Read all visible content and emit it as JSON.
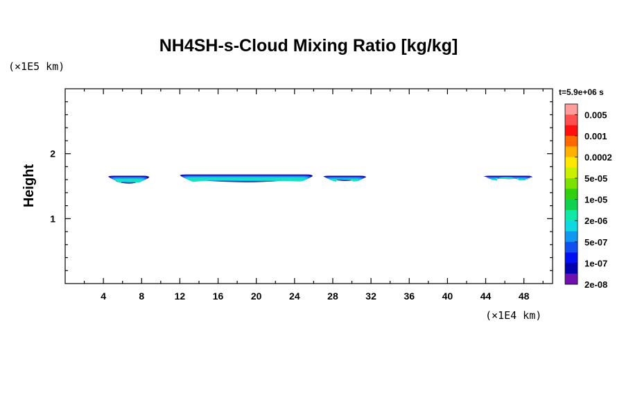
{
  "chart_data": {
    "type": "heatmap",
    "title": "NH4SH-s-Cloud Mixing Ratio [kg/kg]",
    "xlabel": "",
    "ylabel": "Height",
    "x_unit_label": "(×1E4 km)",
    "y_unit_label": "(×1E5 km)",
    "time_label": "t=5.9e+06 s",
    "xlim": [
      0,
      51
    ],
    "ylim": [
      0,
      3
    ],
    "x_ticks": [
      4,
      8,
      12,
      16,
      20,
      24,
      28,
      32,
      36,
      40,
      44,
      48
    ],
    "y_ticks": [
      1,
      2
    ],
    "colorbar": {
      "labels": [
        "0.005",
        "0.001",
        "0.0002",
        "5e-05",
        "1e-05",
        "2e-06",
        "5e-07",
        "1e-07",
        "2e-08"
      ],
      "colors": [
        "#ff9d9d",
        "#ff5050",
        "#ff1010",
        "#ff6a00",
        "#ffb000",
        "#ffe800",
        "#c8f000",
        "#7ce000",
        "#30d010",
        "#10d050",
        "#10e8a8",
        "#10d8e0",
        "#1098f0",
        "#1050f0",
        "#0010f0",
        "#0000b0",
        "#7010b0"
      ]
    },
    "cloud_layers": [
      {
        "x_start": 4.5,
        "x_end": 8.8,
        "y_top": 1.66,
        "y_bottom": 1.54
      },
      {
        "x_start": 12.0,
        "x_end": 25.9,
        "y_top": 1.68,
        "y_bottom": 1.56
      },
      {
        "x_start": 27.0,
        "x_end": 31.5,
        "y_top": 1.66,
        "y_bottom": 1.58
      },
      {
        "x_start": 43.8,
        "x_end": 48.9,
        "y_top": 1.66,
        "y_bottom": 1.61
      }
    ]
  }
}
